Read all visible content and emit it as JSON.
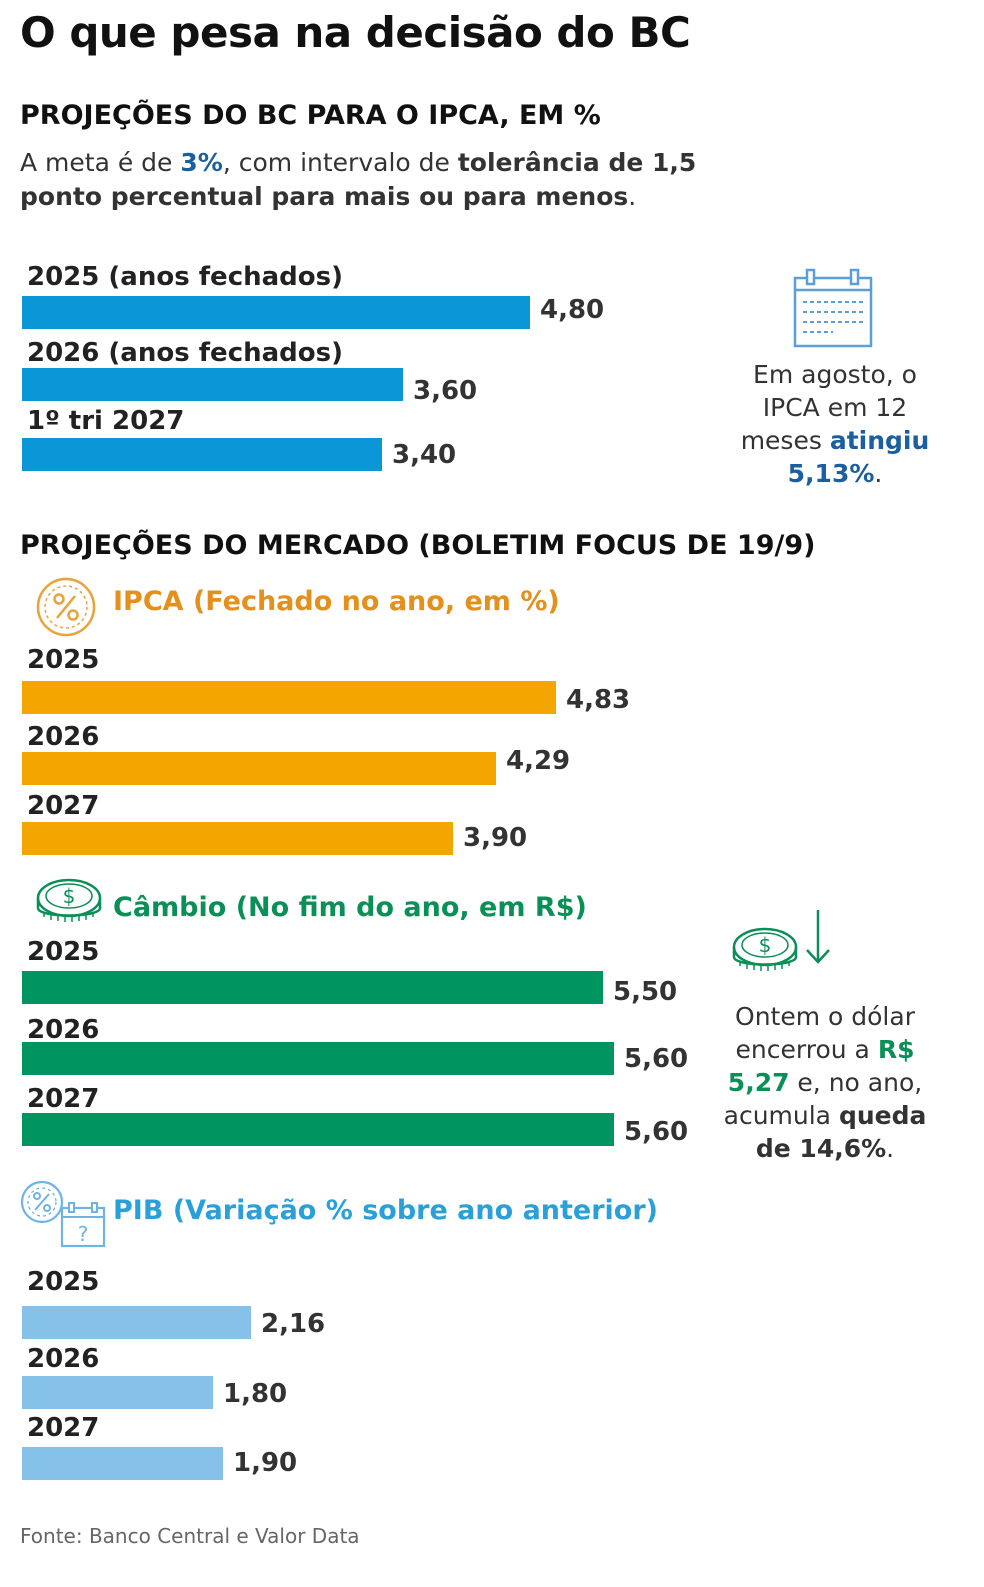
{
  "title": "O que pesa na decisão do BC",
  "bc": {
    "heading": "PROJEÇÕES DO BC PARA O IPCA, EM %",
    "sub_part1": "A meta é de ",
    "sub_goal": "3%",
    "sub_part2": ", com intervalo de ",
    "sub_bold": "tolerância de 1,5 ponto percentual para mais ou para menos",
    "sub_end": ".",
    "note_part1": "Em agosto, o IPCA em 12 meses ",
    "note_bold1": "atingiu",
    "note_bold2": "5,13%",
    "note_end": "."
  },
  "market": {
    "heading": "PROJEÇÕES DO MERCADO (BOLETIM FOCUS DE 19/9)",
    "fx_note_part1": "Ontem o dólar encerrou a ",
    "fx_note_value": "R$ 5,27",
    "fx_note_part2": " e, no ano, acumula ",
    "fx_note_bold": "queda de 14,6%",
    "fx_note_end": "."
  },
  "colors": {
    "bc": "#0b96d8",
    "ipca": "#f5a500",
    "cambio": "#009560",
    "pib": "#86c1ea",
    "ipca_text": "#e3901c",
    "cambio_text": "#0a8f57",
    "pib_text": "#2aa0d8",
    "accent_blue": "#1a5fa0"
  },
  "chart_data": [
    {
      "id": "bc",
      "type": "bar",
      "orientation": "horizontal",
      "title": "PROJEÇÕES DO BC PARA O IPCA, EM %",
      "categories": [
        "2025 (anos fechados)",
        "2026 (anos fechados)",
        "1º tri 2027"
      ],
      "values": [
        4.8,
        3.6,
        3.4
      ],
      "value_labels": [
        "4,80",
        "3,60",
        "3,40"
      ],
      "color": "#0b96d8"
    },
    {
      "id": "ipca",
      "type": "bar",
      "orientation": "horizontal",
      "title": "IPCA (Fechado no ano, em %)",
      "categories": [
        "2025",
        "2026",
        "2027"
      ],
      "values": [
        4.83,
        4.29,
        3.9
      ],
      "value_labels": [
        "4,83",
        "4,29",
        "3,90"
      ],
      "color": "#f5a500"
    },
    {
      "id": "cambio",
      "type": "bar",
      "orientation": "horizontal",
      "title": "Câmbio (No fim do ano, em R$)",
      "categories": [
        "2025",
        "2026",
        "2027"
      ],
      "values": [
        5.5,
        5.6,
        5.6
      ],
      "value_labels": [
        "5,50",
        "5,60",
        "5,60"
      ],
      "color": "#009560"
    },
    {
      "id": "pib",
      "type": "bar",
      "orientation": "horizontal",
      "title": "PIB (Variação % sobre ano anterior)",
      "categories": [
        "2025",
        "2026",
        "2027"
      ],
      "values": [
        2.16,
        1.8,
        1.9
      ],
      "value_labels": [
        "2,16",
        "1,80",
        "1,90"
      ],
      "color": "#86c1ea"
    }
  ],
  "source": "Fonte: Banco Central e Valor Data"
}
